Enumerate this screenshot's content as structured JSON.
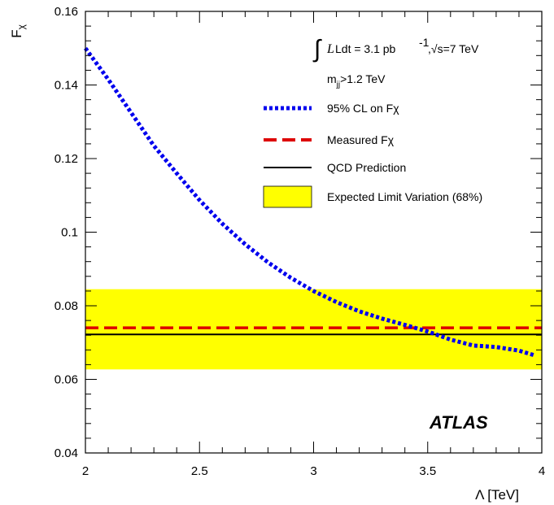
{
  "chart_data": {
    "type": "line",
    "xlabel": "Λ [TeV]",
    "ylabel": "F",
    "ylabel_sub": "χ",
    "xlim": [
      2,
      4
    ],
    "ylim": [
      0.04,
      0.16
    ],
    "x_ticks": [
      "2",
      "2.5",
      "3",
      "3.5",
      "4"
    ],
    "y_ticks": [
      "0.04",
      "0.06",
      "0.08",
      "0.1",
      "0.12",
      "0.14",
      "0.16"
    ],
    "series": [
      {
        "name": "95% CL on Fχ",
        "style": "dotted",
        "color": "#0000ee",
        "x": [
          2.0,
          2.1,
          2.2,
          2.3,
          2.4,
          2.5,
          2.6,
          2.7,
          2.8,
          2.9,
          3.0,
          3.1,
          3.2,
          3.3,
          3.4,
          3.5,
          3.6,
          3.7,
          3.8,
          3.9,
          3.97
        ],
        "y": [
          0.15,
          0.1415,
          0.1325,
          0.1235,
          0.116,
          0.1087,
          0.1023,
          0.0967,
          0.0918,
          0.0876,
          0.084,
          0.081,
          0.0785,
          0.0765,
          0.0748,
          0.073,
          0.0708,
          0.0692,
          0.0688,
          0.0678,
          0.0665
        ]
      }
    ],
    "measured": {
      "name": "Measured Fχ",
      "value": 0.074,
      "color": "#dd0000",
      "style": "dashed"
    },
    "prediction": {
      "name": "QCD Prediction",
      "value": 0.0722,
      "color": "#000000",
      "style": "solid"
    },
    "band": {
      "name": "Expected Limit Variation (68%)",
      "low": 0.0627,
      "high": 0.0845,
      "color": "#ffff00"
    },
    "legend_placement": "top-right",
    "annotations": {
      "integral": "Ldt = 3.1 pb",
      "integral_sup": "-1",
      "sqrt_part": ",√s=7 TeV",
      "mjj_m": "m",
      "mjj_sub": "jj",
      "mjj_rest": ">1.2 TeV",
      "experiment": "ATLAS"
    }
  }
}
